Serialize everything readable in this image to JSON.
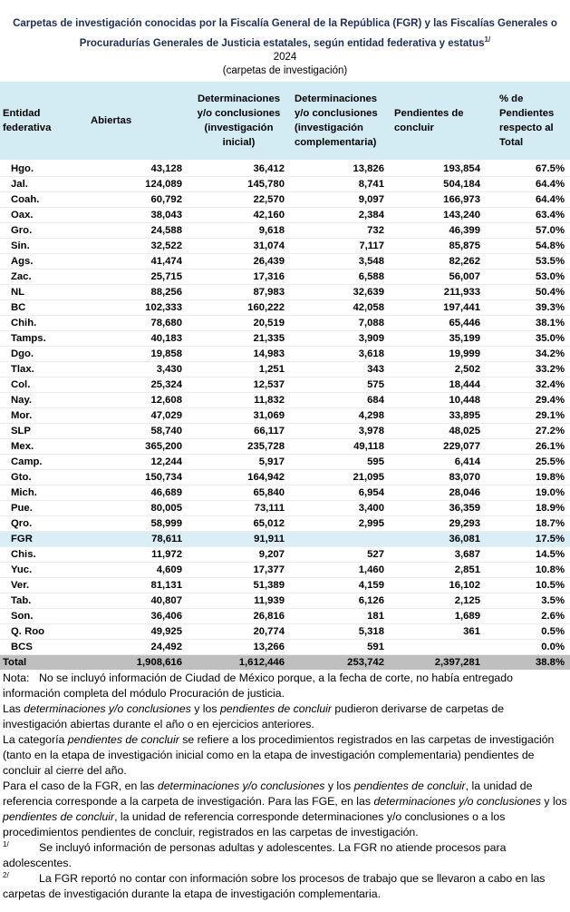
{
  "header": {
    "title_line1": "Carpetas de investigación conocidas por la Fiscalía General de la República (FGR) y las Fiscalías Generales o",
    "title_line2": "Procuradurías Generales de Justicia estatales, según entidad federativa y estatus",
    "title_mark": "1/",
    "year": "2024",
    "unit": "(carpetas de investigación)"
  },
  "table": {
    "columns": [
      "Entidad federativa",
      "Abiertas",
      "Determinaciones y/o conclusiones (investigación inicial)",
      "Determinaciones y/o conclusiones (investigación complementaria)",
      "Pendientes de concluir",
      "% de Pendientes respecto al Total"
    ],
    "rows": [
      [
        "Hgo.",
        "43,128",
        "36,412",
        "13,826",
        "193,854",
        "67.5%"
      ],
      [
        "Jal.",
        "124,089",
        "145,780",
        "8,741",
        "504,184",
        "64.4%"
      ],
      [
        "Coah.",
        "60,792",
        "22,570",
        "9,097",
        "166,973",
        "64.4%"
      ],
      [
        "Oax.",
        "38,043",
        "42,160",
        "2,384",
        "143,240",
        "63.4%"
      ],
      [
        "Gro.",
        "24,588",
        "9,618",
        "732",
        "46,399",
        "57.0%"
      ],
      [
        "Sin.",
        "32,522",
        "31,074",
        "7,117",
        "85,875",
        "54.8%"
      ],
      [
        "Ags.",
        "41,474",
        "26,439",
        "3,548",
        "82,262",
        "53.5%"
      ],
      [
        "Zac.",
        "25,715",
        "17,316",
        "6,588",
        "56,007",
        "53.0%"
      ],
      [
        "NL",
        "88,256",
        "87,983",
        "32,639",
        "211,933",
        "50.4%"
      ],
      [
        "BC",
        "102,333",
        "160,222",
        "42,058",
        "197,441",
        "39.3%"
      ],
      [
        "Chih.",
        "78,680",
        "20,519",
        "7,088",
        "65,446",
        "38.1%"
      ],
      [
        "Tamps.",
        "40,183",
        "21,335",
        "3,909",
        "35,199",
        "35.0%"
      ],
      [
        "Dgo.",
        "19,858",
        "14,983",
        "3,618",
        "19,999",
        "34.2%"
      ],
      [
        "Tlax.",
        "3,430",
        "1,251",
        "343",
        "2,502",
        "33.2%"
      ],
      [
        "Col.",
        "25,324",
        "12,537",
        "575",
        "18,444",
        "32.4%"
      ],
      [
        "Nay.",
        "12,608",
        "11,832",
        "684",
        "10,448",
        "29.4%"
      ],
      [
        "Mor.",
        "47,029",
        "31,069",
        "4,298",
        "33,895",
        "29.1%"
      ],
      [
        "SLP",
        "58,740",
        "66,117",
        "3,978",
        "48,025",
        "27.2%"
      ],
      [
        "Mex.",
        "365,200",
        "235,728",
        "49,118",
        "229,077",
        "26.1%"
      ],
      [
        "Camp.",
        "12,244",
        "5,917",
        "595",
        "6,414",
        "25.5%"
      ],
      [
        "Gto.",
        "150,734",
        "164,942",
        "21,095",
        "83,070",
        "19.8%"
      ],
      [
        "Mich.",
        "46,689",
        "65,840",
        "6,954",
        "28,046",
        "19.0%"
      ],
      [
        "Pue.",
        "80,005",
        "73,111",
        "3,400",
        "36,359",
        "18.9%"
      ],
      [
        "Qro.",
        "58,999",
        "65,012",
        "2,995",
        "29,293",
        "18.7%"
      ],
      [
        "FGR",
        "78,611",
        "91,911",
        null,
        "36,081",
        "17.5%"
      ],
      [
        "Chis.",
        "11,972",
        "9,207",
        "527",
        "3,687",
        "14.5%"
      ],
      [
        "Yuc.",
        "4,609",
        "17,377",
        "1,460",
        "2,851",
        "10.8%"
      ],
      [
        "Ver.",
        "81,131",
        "51,389",
        "4,159",
        "16,102",
        "10.5%"
      ],
      [
        "Tab.",
        "40,807",
        "11,939",
        "6,126",
        "2,125",
        "3.5%"
      ],
      [
        "Son.",
        "36,406",
        "26,816",
        "181",
        "1,689",
        "2.6%"
      ],
      [
        "Q. Roo",
        "49,925",
        "20,774",
        "5,318",
        "361",
        "0.5%"
      ],
      [
        "BCS",
        "24,492",
        "13,266",
        "591",
        null,
        "0.0%"
      ]
    ],
    "total": [
      "Total",
      "1,908,616",
      "1,612,446",
      "253,742",
      "2,397,281",
      "38.8%"
    ]
  },
  "notes": {
    "label": "Nota:",
    "items": [
      [
        "No se incluyó información de Ciudad de México porque, a la fecha de corte, no había entregado información completa del módulo Procuración de justicia."
      ],
      [
        "Las ",
        {
          "text": "determinaciones y/o conclusiones",
          "em": true
        },
        " y los ",
        {
          "text": "pendientes de concluir",
          "em": true
        },
        " pudieron derivarse de carpetas de investigación abiertas durante el año o en ejercicios anteriores."
      ],
      [
        "La categoría ",
        {
          "text": "pendientes de concluir",
          "em": true
        },
        " se refiere a los procedimientos registrados en las carpetas de investigación (tanto en la etapa de investigación inicial como en la etapa de investigación complementaria) pendientes de concluir al cierre del año."
      ],
      [
        "Para el caso de la FGR, en las ",
        {
          "text": "determinaciones y/o conclusiones",
          "em": true
        },
        " y los ",
        {
          "text": "pendientes de concluir",
          "em": true
        },
        ", la unidad de referencia corresponde a la carpeta de investigación. Para las FGE, en las ",
        {
          "text": "determinaciones y/o conclusiones",
          "em": true
        },
        " y los ",
        {
          "text": "pendientes de concluir",
          "em": true
        },
        ", la unidad de referencia corresponde determinaciones y/o conclusiones o a los procedimientos pendientes de concluir, registrados en las carpetas de investigación."
      ]
    ]
  },
  "footnotes": [
    {
      "mark": "1/",
      "text": "Se incluyó información de personas adultas y adolescentes. La FGR no atiende procesos para adolescentes."
    },
    {
      "mark": "2/",
      "text": "La FGR reportó no contar con información sobre los procesos de trabajo que se llevaron a cabo en las carpetas de investigación durante la etapa de investigación complementaria."
    }
  ]
}
